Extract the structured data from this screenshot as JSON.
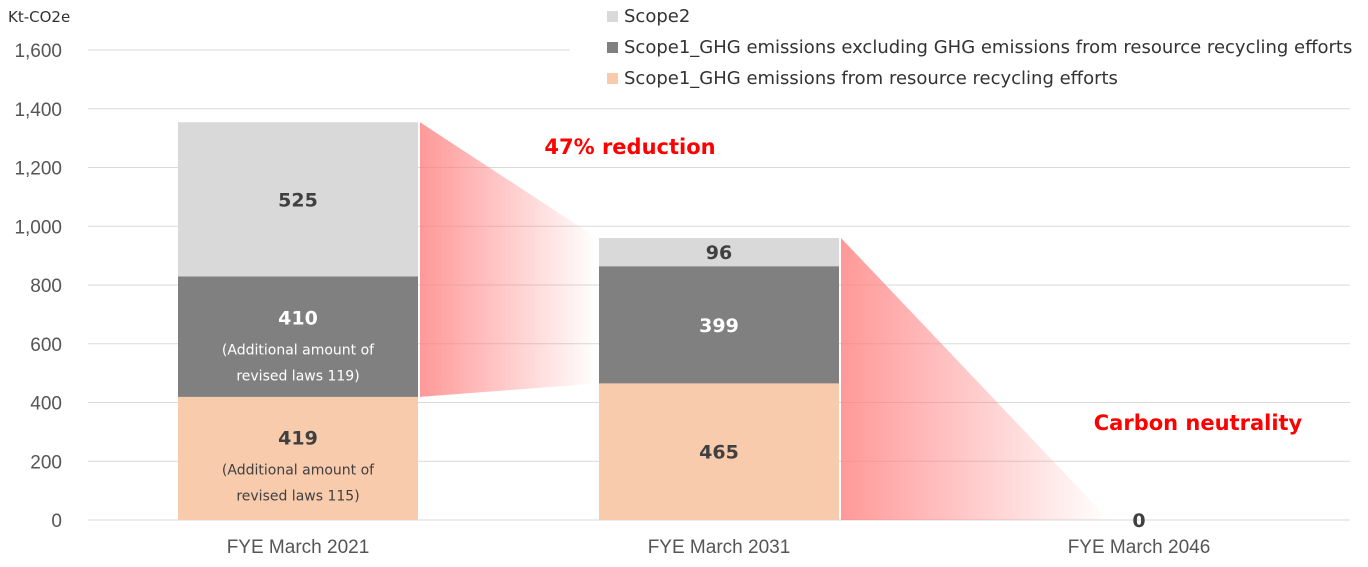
{
  "chart_data": {
    "type": "bar",
    "stacked": true,
    "unit_label": "Kt-CO2e",
    "categories": [
      "FYE March 2021",
      "FYE March 2031",
      "FYE March 2046"
    ],
    "ylim": [
      0,
      1600
    ],
    "yticks": [
      0,
      200,
      400,
      600,
      800,
      1000,
      1200,
      1400,
      1600
    ],
    "ytick_labels": [
      "0",
      "200",
      "400",
      "600",
      "800",
      "1,000",
      "1,200",
      "1,400",
      "1,600"
    ],
    "grid": true,
    "series": [
      {
        "name": "Scope1_GHG emissions from resource recycling efforts",
        "color": "#f8cbad",
        "values": [
          419,
          465,
          0
        ],
        "label_color": "#404040"
      },
      {
        "name": "Scope1_GHG emissions excluding GHG emissions from resource recycling efforts",
        "color": "#808080",
        "values": [
          410,
          399,
          0
        ],
        "label_color": "#ffffff"
      },
      {
        "name": "Scope2",
        "color": "#d9d9d9",
        "values": [
          525,
          96,
          0
        ],
        "label_color": "#404040"
      }
    ],
    "legend_order": [
      2,
      1,
      0
    ],
    "legend_position": "top-right",
    "segment_notes": [
      {
        "category": 0,
        "series": 1,
        "lines": [
          "(Additional amount of",
          "revised laws 119)"
        ]
      },
      {
        "category": 0,
        "series": 0,
        "lines": [
          "(Additional amount of",
          "revised laws 115)"
        ]
      }
    ],
    "total_labels": [
      {
        "category": 2,
        "text": "0"
      }
    ],
    "annotations": [
      {
        "text": "47% reduction",
        "from": 0,
        "to": 1
      },
      {
        "text": "Carbon neutrality",
        "from": 1,
        "to": 2
      }
    ],
    "annotation_color": "#ff0000",
    "arrow_color": "#ff7f7f"
  }
}
